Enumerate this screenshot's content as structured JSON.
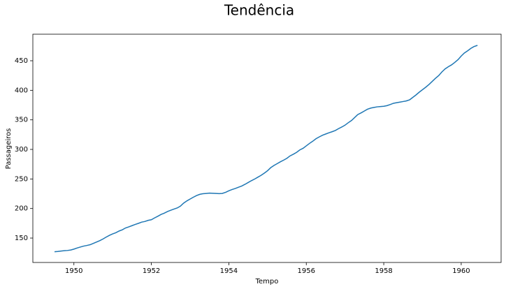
{
  "chart_data": {
    "type": "line",
    "title": "Tendência",
    "xlabel": "Tempo",
    "ylabel": "Passageiros",
    "x": [
      1949.5,
      1949.58,
      1949.67,
      1949.75,
      1949.83,
      1949.92,
      1950.0,
      1950.08,
      1950.17,
      1950.25,
      1950.33,
      1950.42,
      1950.5,
      1950.58,
      1950.67,
      1950.75,
      1950.83,
      1950.92,
      1951.0,
      1951.08,
      1951.17,
      1951.25,
      1951.33,
      1951.42,
      1951.5,
      1951.58,
      1951.67,
      1951.75,
      1951.83,
      1951.92,
      1952.0,
      1952.08,
      1952.17,
      1952.25,
      1952.33,
      1952.42,
      1952.5,
      1952.58,
      1952.67,
      1952.75,
      1952.83,
      1952.92,
      1953.0,
      1953.08,
      1953.17,
      1953.25,
      1953.33,
      1953.42,
      1953.5,
      1953.58,
      1953.67,
      1953.75,
      1953.83,
      1953.92,
      1954.0,
      1954.08,
      1954.17,
      1954.25,
      1954.33,
      1954.42,
      1954.5,
      1954.58,
      1954.67,
      1954.75,
      1954.83,
      1954.92,
      1955.0,
      1955.08,
      1955.17,
      1955.25,
      1955.33,
      1955.42,
      1955.5,
      1955.58,
      1955.67,
      1955.75,
      1955.83,
      1955.92,
      1956.0,
      1956.08,
      1956.17,
      1956.25,
      1956.33,
      1956.42,
      1956.5,
      1956.58,
      1956.67,
      1956.75,
      1956.83,
      1956.92,
      1957.0,
      1957.08,
      1957.17,
      1957.25,
      1957.33,
      1957.42,
      1957.5,
      1957.58,
      1957.67,
      1957.75,
      1957.83,
      1957.92,
      1958.0,
      1958.08,
      1958.17,
      1958.25,
      1958.33,
      1958.42,
      1958.5,
      1958.58,
      1958.67,
      1958.75,
      1958.83,
      1958.92,
      1959.0,
      1959.08,
      1959.17,
      1959.25,
      1959.33,
      1959.42,
      1959.5,
      1959.58,
      1959.67,
      1959.75,
      1959.83,
      1959.92,
      1960.0,
      1960.08,
      1960.17,
      1960.25,
      1960.33,
      1960.42
    ],
    "series": [
      {
        "name": "Tendência",
        "color": "#1f77b4",
        "values": [
          126.8,
          127.3,
          128,
          128.6,
          129,
          129.8,
          131.3,
          133.1,
          134.9,
          136.4,
          137.4,
          138.8,
          140.9,
          143.2,
          145.7,
          148.4,
          151.5,
          154.7,
          157,
          159,
          162,
          164,
          167,
          169,
          171,
          173,
          175,
          177,
          178,
          180,
          181,
          184,
          187,
          190,
          192,
          195,
          197,
          199,
          201,
          204,
          209,
          213,
          216,
          219,
          222,
          224,
          225,
          225.5,
          226,
          225.8,
          225.5,
          225.2,
          225.5,
          227.5,
          230,
          232,
          234,
          236,
          238,
          241,
          244,
          247,
          250,
          253,
          256,
          260,
          264,
          269,
          273,
          276,
          279,
          282,
          285,
          289,
          292,
          295,
          299,
          302,
          306,
          310,
          314,
          318,
          321,
          324,
          326,
          328,
          330,
          332,
          335,
          338,
          341,
          345,
          349,
          354,
          359,
          362,
          365,
          368,
          370,
          371,
          372,
          372.5,
          373,
          374,
          376,
          378,
          379,
          380,
          381,
          382,
          384,
          388,
          392,
          397,
          401,
          405,
          410,
          415,
          420,
          425,
          431,
          436,
          440,
          443,
          447,
          452,
          458,
          463,
          467,
          471,
          474,
          476
        ]
      }
    ],
    "xlim": [
      1948.94,
      1961.03
    ],
    "ylim": [
      108.7,
      494.9
    ],
    "xticks": [
      1950,
      1952,
      1954,
      1956,
      1958,
      1960
    ],
    "yticks": [
      150,
      200,
      250,
      300,
      350,
      400,
      450
    ]
  }
}
